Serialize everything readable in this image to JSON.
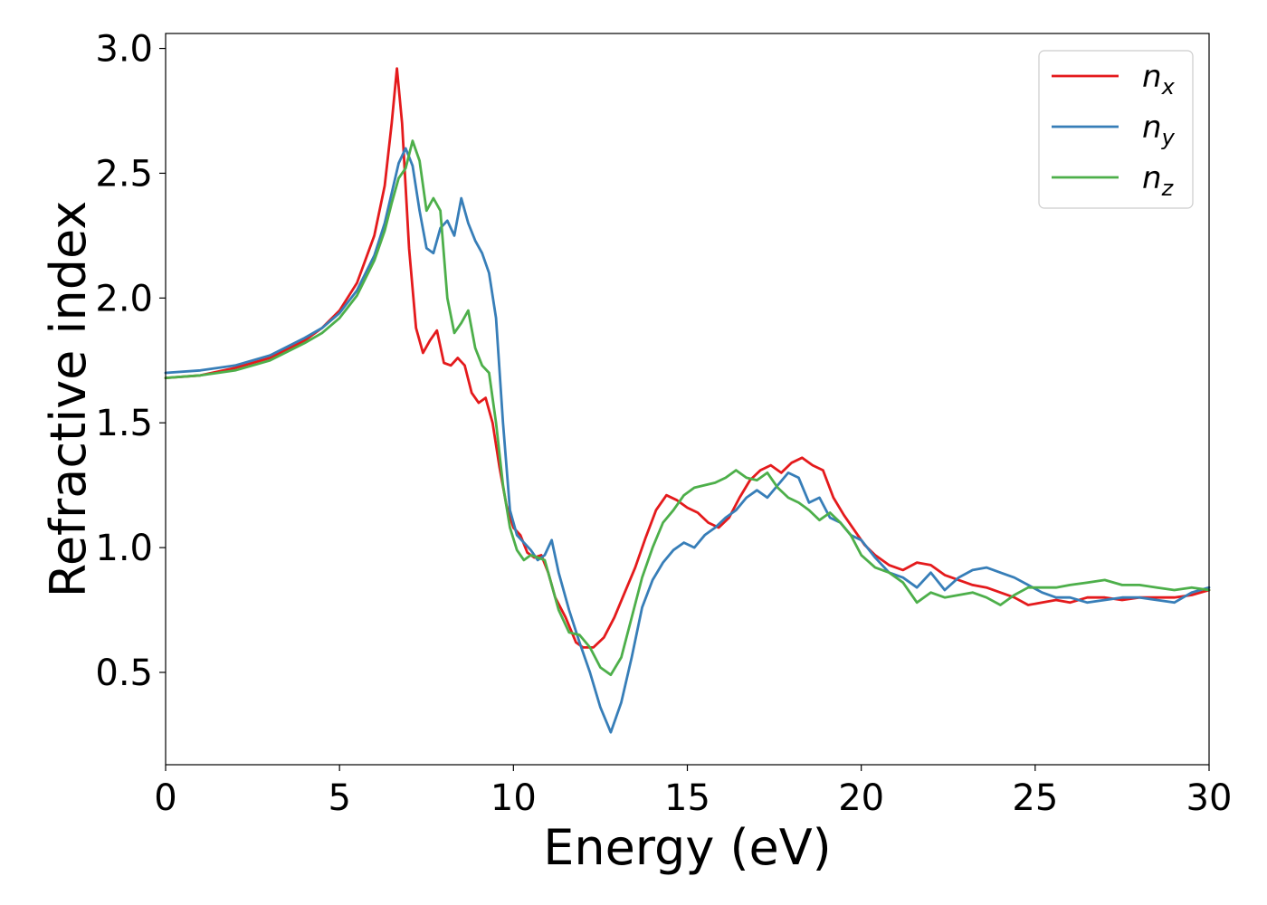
{
  "chart_data": {
    "type": "line",
    "xlabel": "Energy (eV)",
    "ylabel": "Refractive index",
    "xlim": [
      0,
      30
    ],
    "ylim": [
      0.13,
      3.06
    ],
    "x_ticks": [
      0,
      5,
      10,
      15,
      20,
      25,
      30
    ],
    "x_tick_labels": [
      "0",
      "5",
      "10",
      "15",
      "20",
      "25",
      "30"
    ],
    "y_ticks": [
      0.5,
      1.0,
      1.5,
      2.0,
      2.5,
      3.0
    ],
    "y_tick_labels": [
      "0.5",
      "1.0",
      "1.5",
      "2.0",
      "2.5",
      "3.0"
    ],
    "grid": false,
    "legend_position": "top-right",
    "series": [
      {
        "name": "n",
        "subscript": "x",
        "color": "#e41a1c",
        "x": [
          0,
          1,
          2,
          3,
          4,
          4.5,
          5,
          5.5,
          6,
          6.3,
          6.5,
          6.65,
          6.8,
          7.0,
          7.2,
          7.4,
          7.6,
          7.8,
          8.0,
          8.2,
          8.4,
          8.6,
          8.8,
          9.0,
          9.2,
          9.4,
          9.6,
          9.8,
          10.0,
          10.2,
          10.4,
          10.6,
          10.8,
          11.0,
          11.2,
          11.5,
          11.8,
          12.0,
          12.3,
          12.6,
          12.9,
          13.2,
          13.5,
          13.8,
          14.1,
          14.4,
          14.7,
          15.0,
          15.3,
          15.6,
          15.9,
          16.2,
          16.5,
          16.8,
          17.1,
          17.4,
          17.7,
          18.0,
          18.3,
          18.6,
          18.9,
          19.2,
          19.5,
          19.8,
          20.1,
          20.4,
          20.8,
          21.2,
          21.6,
          22.0,
          22.4,
          22.8,
          23.2,
          23.6,
          24.0,
          24.4,
          24.8,
          25.2,
          25.6,
          26.0,
          26.5,
          27.0,
          27.5,
          28.0,
          28.5,
          29.0,
          29.5,
          30.0
        ],
        "y": [
          1.68,
          1.69,
          1.72,
          1.76,
          1.83,
          1.88,
          1.95,
          2.06,
          2.25,
          2.45,
          2.7,
          2.92,
          2.7,
          2.2,
          1.88,
          1.78,
          1.83,
          1.87,
          1.74,
          1.73,
          1.76,
          1.73,
          1.62,
          1.58,
          1.6,
          1.5,
          1.32,
          1.17,
          1.08,
          1.05,
          0.98,
          0.96,
          0.97,
          0.9,
          0.8,
          0.72,
          0.62,
          0.6,
          0.6,
          0.64,
          0.72,
          0.82,
          0.92,
          1.04,
          1.15,
          1.21,
          1.19,
          1.16,
          1.14,
          1.1,
          1.08,
          1.12,
          1.2,
          1.27,
          1.31,
          1.33,
          1.3,
          1.34,
          1.36,
          1.33,
          1.31,
          1.2,
          1.13,
          1.07,
          1.01,
          0.97,
          0.93,
          0.91,
          0.94,
          0.93,
          0.89,
          0.87,
          0.85,
          0.84,
          0.82,
          0.8,
          0.77,
          0.78,
          0.79,
          0.78,
          0.8,
          0.8,
          0.79,
          0.8,
          0.8,
          0.8,
          0.81,
          0.83
        ]
      },
      {
        "name": "n",
        "subscript": "y",
        "color": "#377eb8",
        "x": [
          0,
          1,
          2,
          3,
          4,
          4.5,
          5,
          5.5,
          6,
          6.3,
          6.5,
          6.7,
          6.9,
          7.1,
          7.3,
          7.5,
          7.7,
          7.9,
          8.1,
          8.3,
          8.5,
          8.7,
          8.9,
          9.1,
          9.3,
          9.5,
          9.7,
          9.9,
          10.1,
          10.3,
          10.5,
          10.7,
          10.9,
          11.1,
          11.3,
          11.6,
          11.9,
          12.2,
          12.5,
          12.8,
          13.1,
          13.4,
          13.7,
          14.0,
          14.3,
          14.6,
          14.9,
          15.2,
          15.5,
          15.8,
          16.1,
          16.4,
          16.7,
          17.0,
          17.3,
          17.6,
          17.9,
          18.2,
          18.5,
          18.8,
          19.1,
          19.4,
          19.7,
          20.0,
          20.4,
          20.8,
          21.2,
          21.6,
          22.0,
          22.4,
          22.8,
          23.2,
          23.6,
          24.0,
          24.4,
          24.8,
          25.2,
          25.6,
          26.0,
          26.5,
          27.0,
          27.5,
          28.0,
          28.5,
          29.0,
          29.5,
          30.0
        ],
        "y": [
          1.7,
          1.71,
          1.73,
          1.77,
          1.84,
          1.88,
          1.94,
          2.03,
          2.17,
          2.3,
          2.42,
          2.54,
          2.6,
          2.53,
          2.35,
          2.2,
          2.18,
          2.28,
          2.31,
          2.25,
          2.4,
          2.3,
          2.23,
          2.18,
          2.1,
          1.92,
          1.5,
          1.15,
          1.05,
          1.02,
          0.99,
          0.95,
          0.97,
          1.03,
          0.9,
          0.75,
          0.62,
          0.5,
          0.36,
          0.26,
          0.38,
          0.56,
          0.76,
          0.87,
          0.94,
          0.99,
          1.02,
          1.0,
          1.05,
          1.08,
          1.12,
          1.15,
          1.2,
          1.23,
          1.2,
          1.25,
          1.3,
          1.28,
          1.18,
          1.2,
          1.12,
          1.1,
          1.05,
          1.03,
          0.96,
          0.9,
          0.88,
          0.84,
          0.9,
          0.83,
          0.88,
          0.91,
          0.92,
          0.9,
          0.88,
          0.85,
          0.82,
          0.8,
          0.8,
          0.78,
          0.79,
          0.8,
          0.8,
          0.79,
          0.78,
          0.82,
          0.84
        ]
      },
      {
        "name": "n",
        "subscript": "z",
        "color": "#4daf4a",
        "x": [
          0,
          1,
          2,
          3,
          4,
          4.5,
          5,
          5.5,
          6,
          6.3,
          6.5,
          6.7,
          6.9,
          7.1,
          7.3,
          7.5,
          7.7,
          7.9,
          8.1,
          8.3,
          8.5,
          8.7,
          8.9,
          9.1,
          9.3,
          9.5,
          9.7,
          9.9,
          10.1,
          10.3,
          10.5,
          10.7,
          10.9,
          11.1,
          11.3,
          11.6,
          11.9,
          12.2,
          12.5,
          12.8,
          13.1,
          13.4,
          13.7,
          14.0,
          14.3,
          14.6,
          14.9,
          15.2,
          15.5,
          15.8,
          16.1,
          16.4,
          16.7,
          17.0,
          17.3,
          17.6,
          17.9,
          18.2,
          18.5,
          18.8,
          19.1,
          19.4,
          19.7,
          20.0,
          20.4,
          20.8,
          21.2,
          21.6,
          22.0,
          22.4,
          22.8,
          23.2,
          23.6,
          24.0,
          24.4,
          24.8,
          25.2,
          25.6,
          26.0,
          26.5,
          27.0,
          27.5,
          28.0,
          28.5,
          29.0,
          29.5,
          30.0
        ],
        "y": [
          1.68,
          1.69,
          1.71,
          1.75,
          1.82,
          1.86,
          1.92,
          2.01,
          2.15,
          2.27,
          2.38,
          2.48,
          2.52,
          2.63,
          2.55,
          2.35,
          2.4,
          2.35,
          2.0,
          1.86,
          1.9,
          1.95,
          1.8,
          1.73,
          1.7,
          1.5,
          1.25,
          1.08,
          0.99,
          0.95,
          0.97,
          0.96,
          0.95,
          0.85,
          0.75,
          0.66,
          0.65,
          0.6,
          0.52,
          0.49,
          0.56,
          0.72,
          0.88,
          1.0,
          1.1,
          1.15,
          1.21,
          1.24,
          1.25,
          1.26,
          1.28,
          1.31,
          1.28,
          1.27,
          1.3,
          1.24,
          1.2,
          1.18,
          1.15,
          1.11,
          1.14,
          1.1,
          1.05,
          0.97,
          0.92,
          0.9,
          0.86,
          0.78,
          0.82,
          0.8,
          0.81,
          0.82,
          0.8,
          0.77,
          0.81,
          0.84,
          0.84,
          0.84,
          0.85,
          0.86,
          0.87,
          0.85,
          0.85,
          0.84,
          0.83,
          0.84,
          0.83
        ]
      }
    ]
  }
}
